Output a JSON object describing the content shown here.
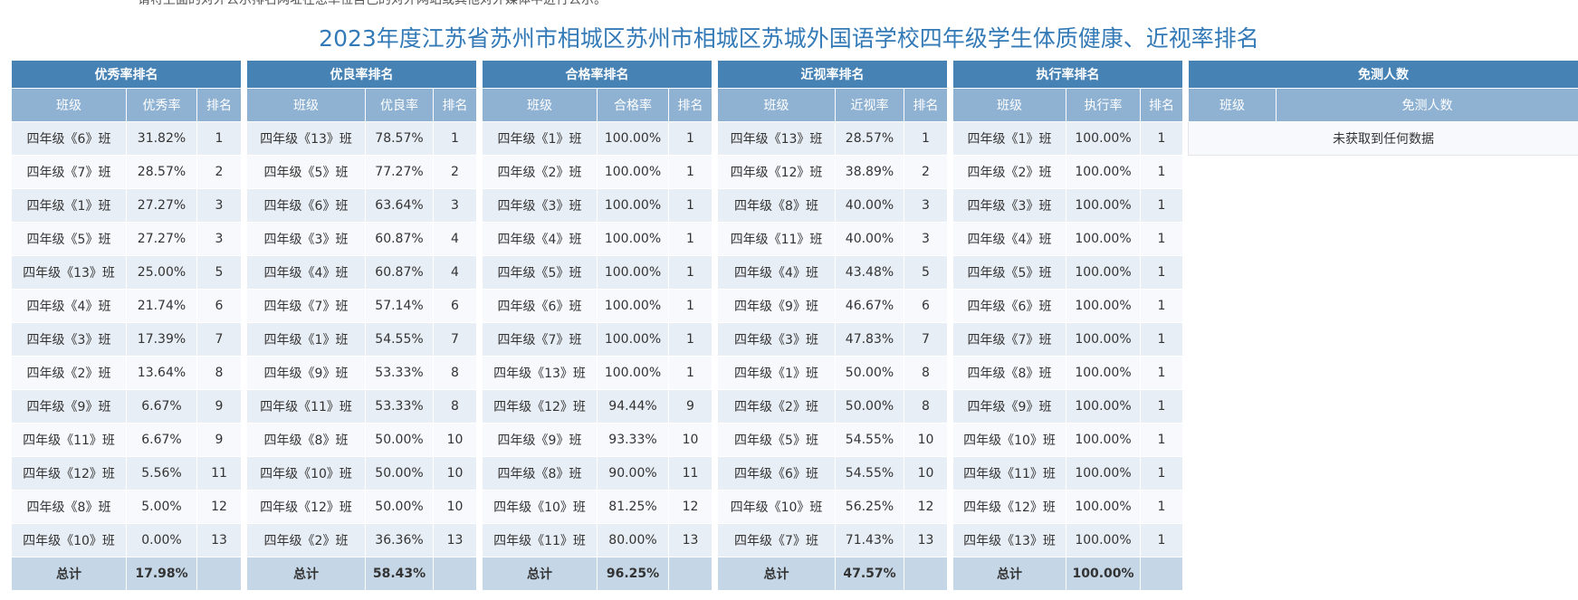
{
  "header": {
    "top_note": "请将上面的对外公示排名网址在您单位自己的对外网站或其他对外媒体中进行公示。",
    "title": "2023年度江苏省苏州市相城区苏州市相城区苏城外国语学校四年级学生体质健康、近视率排名"
  },
  "panels": [
    {
      "title": "优秀率排名",
      "columns": [
        "班级",
        "优秀率",
        "排名"
      ],
      "rows": [
        [
          "四年级《6》班",
          "31.82%",
          "1"
        ],
        [
          "四年级《7》班",
          "28.57%",
          "2"
        ],
        [
          "四年级《1》班",
          "27.27%",
          "3"
        ],
        [
          "四年级《5》班",
          "27.27%",
          "3"
        ],
        [
          "四年级《13》班",
          "25.00%",
          "5"
        ],
        [
          "四年级《4》班",
          "21.74%",
          "6"
        ],
        [
          "四年级《3》班",
          "17.39%",
          "7"
        ],
        [
          "四年级《2》班",
          "13.64%",
          "8"
        ],
        [
          "四年级《9》班",
          "6.67%",
          "9"
        ],
        [
          "四年级《11》班",
          "6.67%",
          "9"
        ],
        [
          "四年级《12》班",
          "5.56%",
          "11"
        ],
        [
          "四年级《8》班",
          "5.00%",
          "12"
        ],
        [
          "四年级《10》班",
          "0.00%",
          "13"
        ]
      ],
      "total": [
        "总计",
        "17.98%",
        ""
      ]
    },
    {
      "title": "优良率排名",
      "columns": [
        "班级",
        "优良率",
        "排名"
      ],
      "rows": [
        [
          "四年级《13》班",
          "78.57%",
          "1"
        ],
        [
          "四年级《5》班",
          "77.27%",
          "2"
        ],
        [
          "四年级《6》班",
          "63.64%",
          "3"
        ],
        [
          "四年级《3》班",
          "60.87%",
          "4"
        ],
        [
          "四年级《4》班",
          "60.87%",
          "4"
        ],
        [
          "四年级《7》班",
          "57.14%",
          "6"
        ],
        [
          "四年级《1》班",
          "54.55%",
          "7"
        ],
        [
          "四年级《9》班",
          "53.33%",
          "8"
        ],
        [
          "四年级《11》班",
          "53.33%",
          "8"
        ],
        [
          "四年级《8》班",
          "50.00%",
          "10"
        ],
        [
          "四年级《10》班",
          "50.00%",
          "10"
        ],
        [
          "四年级《12》班",
          "50.00%",
          "10"
        ],
        [
          "四年级《2》班",
          "36.36%",
          "13"
        ]
      ],
      "total": [
        "总计",
        "58.43%",
        ""
      ]
    },
    {
      "title": "合格率排名",
      "columns": [
        "班级",
        "合格率",
        "排名"
      ],
      "rows": [
        [
          "四年级《1》班",
          "100.00%",
          "1"
        ],
        [
          "四年级《2》班",
          "100.00%",
          "1"
        ],
        [
          "四年级《3》班",
          "100.00%",
          "1"
        ],
        [
          "四年级《4》班",
          "100.00%",
          "1"
        ],
        [
          "四年级《5》班",
          "100.00%",
          "1"
        ],
        [
          "四年级《6》班",
          "100.00%",
          "1"
        ],
        [
          "四年级《7》班",
          "100.00%",
          "1"
        ],
        [
          "四年级《13》班",
          "100.00%",
          "1"
        ],
        [
          "四年级《12》班",
          "94.44%",
          "9"
        ],
        [
          "四年级《9》班",
          "93.33%",
          "10"
        ],
        [
          "四年级《8》班",
          "90.00%",
          "11"
        ],
        [
          "四年级《10》班",
          "81.25%",
          "12"
        ],
        [
          "四年级《11》班",
          "80.00%",
          "13"
        ]
      ],
      "total": [
        "总计",
        "96.25%",
        ""
      ]
    },
    {
      "title": "近视率排名",
      "columns": [
        "班级",
        "近视率",
        "排名"
      ],
      "rows": [
        [
          "四年级《13》班",
          "28.57%",
          "1"
        ],
        [
          "四年级《12》班",
          "38.89%",
          "2"
        ],
        [
          "四年级《8》班",
          "40.00%",
          "3"
        ],
        [
          "四年级《11》班",
          "40.00%",
          "3"
        ],
        [
          "四年级《4》班",
          "43.48%",
          "5"
        ],
        [
          "四年级《9》班",
          "46.67%",
          "6"
        ],
        [
          "四年级《3》班",
          "47.83%",
          "7"
        ],
        [
          "四年级《1》班",
          "50.00%",
          "8"
        ],
        [
          "四年级《2》班",
          "50.00%",
          "8"
        ],
        [
          "四年级《5》班",
          "54.55%",
          "10"
        ],
        [
          "四年级《6》班",
          "54.55%",
          "10"
        ],
        [
          "四年级《10》班",
          "56.25%",
          "12"
        ],
        [
          "四年级《7》班",
          "71.43%",
          "13"
        ]
      ],
      "total": [
        "总计",
        "47.57%",
        ""
      ]
    },
    {
      "title": "执行率排名",
      "columns": [
        "班级",
        "执行率",
        "排名"
      ],
      "rows": [
        [
          "四年级《1》班",
          "100.00%",
          "1"
        ],
        [
          "四年级《2》班",
          "100.00%",
          "1"
        ],
        [
          "四年级《3》班",
          "100.00%",
          "1"
        ],
        [
          "四年级《4》班",
          "100.00%",
          "1"
        ],
        [
          "四年级《5》班",
          "100.00%",
          "1"
        ],
        [
          "四年级《6》班",
          "100.00%",
          "1"
        ],
        [
          "四年级《7》班",
          "100.00%",
          "1"
        ],
        [
          "四年级《8》班",
          "100.00%",
          "1"
        ],
        [
          "四年级《9》班",
          "100.00%",
          "1"
        ],
        [
          "四年级《10》班",
          "100.00%",
          "1"
        ],
        [
          "四年级《11》班",
          "100.00%",
          "1"
        ],
        [
          "四年级《12》班",
          "100.00%",
          "1"
        ],
        [
          "四年级《13》班",
          "100.00%",
          "1"
        ]
      ],
      "total": [
        "总计",
        "100.00%",
        ""
      ]
    }
  ],
  "exempt_panel": {
    "title": "免测人数",
    "columns": [
      "班级",
      "免测人数"
    ],
    "empty_message": "未获取到任何数据"
  },
  "colors": {
    "title_text": "#337ab7",
    "panel_header": "#4682b4",
    "column_header": "#8fb2d3",
    "row_odd": "#e8eef5",
    "row_even": "#f7f9fc",
    "total_row": "#c5d6e6"
  }
}
